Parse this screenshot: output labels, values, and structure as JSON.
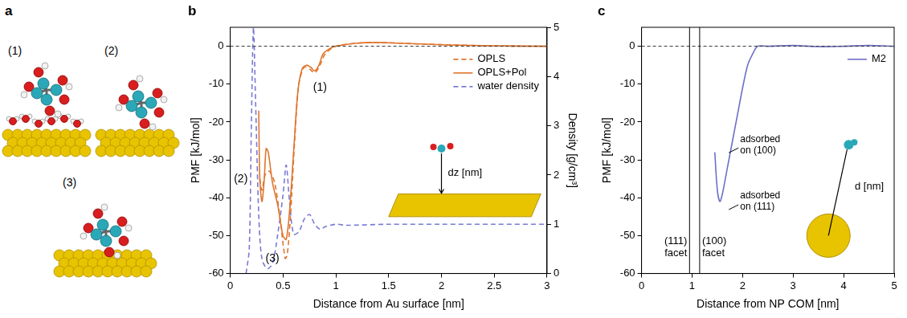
{
  "panel_a": {
    "panel": "a",
    "labels": [
      "(1)",
      "(2)",
      "(3)"
    ]
  },
  "chart_data": [
    {
      "panel": "b",
      "type": "line",
      "x_label": "Distance from Au surface [nm]",
      "y_label": "PMF [kJ/mol]",
      "y2_label": "Density [g/cm³]",
      "xlim": [
        0,
        3
      ],
      "xticks": [
        0,
        0.5,
        1,
        1.5,
        2,
        2.5,
        3
      ],
      "ylim": [
        -60,
        5
      ],
      "yticks": [
        -60,
        -50,
        -40,
        -30,
        -20,
        -10,
        0
      ],
      "y2lim": [
        0,
        5
      ],
      "y2ticks": [
        0,
        1,
        2,
        3,
        4,
        5
      ],
      "grid": false,
      "legend": "right",
      "hline": 0,
      "inset_label": "dz [nm]",
      "annotations": [
        {
          "text": "(1)",
          "x": 0.85,
          "y": -11
        },
        {
          "text": "(2)",
          "x": 0.1,
          "y": -35
        },
        {
          "text": "(3)",
          "x": 0.4,
          "y": -56
        }
      ],
      "series": [
        {
          "name": "OPLS",
          "color": "#e0752d",
          "line_style": "dashed",
          "x": [
            0.28,
            0.3,
            0.33,
            0.37,
            0.42,
            0.47,
            0.52,
            0.54,
            0.57,
            0.61,
            0.65,
            0.7,
            0.75,
            0.8,
            0.85,
            0.9,
            1.0,
            1.2,
            1.4,
            1.8,
            2.5,
            3.0
          ],
          "values": [
            -35,
            -38,
            -34,
            -33,
            -36,
            -45,
            -56,
            -55,
            -45,
            -25,
            -10,
            -5.5,
            -6,
            -7,
            -5,
            -2,
            0,
            0.8,
            1,
            0.6,
            0.1,
            0
          ]
        },
        {
          "name": "OPLS+Pol",
          "color": "#e0752d",
          "line_style": "solid",
          "x": [
            0.27,
            0.28,
            0.3,
            0.32,
            0.34,
            0.36,
            0.4,
            0.45,
            0.5,
            0.53,
            0.56,
            0.6,
            0.64,
            0.68,
            0.72,
            0.76,
            0.8,
            0.84,
            0.88,
            0.95,
            1.0,
            1.2,
            1.4,
            1.6,
            1.8,
            2.0,
            2.5,
            3.0
          ],
          "values": [
            -17,
            -35,
            -41,
            -36,
            -27,
            -28,
            -36,
            -42,
            -50,
            -51,
            -44,
            -28,
            -12,
            -6,
            -5,
            -5.5,
            -6.5,
            -5,
            -2,
            -0.5,
            0,
            0.8,
            1,
            0.8,
            0.6,
            0.4,
            0.1,
            0
          ]
        },
        {
          "name": "water density",
          "color": "#7a7ad6",
          "line_style": "dashed",
          "axis": "y2",
          "x": [
            0.15,
            0.18,
            0.2,
            0.22,
            0.24,
            0.27,
            0.3,
            0.35,
            0.4,
            0.45,
            0.5,
            0.53,
            0.56,
            0.6,
            0.65,
            0.7,
            0.75,
            0.8,
            0.85,
            0.9,
            1.0,
            1.1,
            1.5,
            2.0,
            2.5,
            3.0
          ],
          "values": [
            0,
            0.5,
            3,
            5,
            3.5,
            1.2,
            0.3,
            0.1,
            0.2,
            0.8,
            1.6,
            2.2,
            1.5,
            0.8,
            0.85,
            1.1,
            1.2,
            1.0,
            0.9,
            0.95,
            1.0,
            0.98,
            1.0,
            1.0,
            1.0,
            1.0
          ]
        }
      ]
    },
    {
      "panel": "c",
      "type": "line",
      "x_label": "Distance from NP COM [nm]",
      "y_label": "PMF [kJ/mol]",
      "xlim": [
        0,
        5
      ],
      "xticks": [
        0,
        1,
        2,
        3,
        4,
        5
      ],
      "ylim": [
        -60,
        5
      ],
      "yticks": [
        -60,
        -50,
        -40,
        -30,
        -20,
        -10,
        0
      ],
      "grid": false,
      "legend": "right",
      "hline": 0,
      "inset_label": "d [nm]",
      "facets": [
        {
          "x": 0.95,
          "label": "(111) facet"
        },
        {
          "x": 1.15,
          "label": "(100) facet"
        }
      ],
      "annotations": [
        {
          "text": "adsorbed on (100)",
          "x": 1.95,
          "y": -26
        },
        {
          "text": "adsorbed on (111)",
          "x": 1.95,
          "y": -41
        }
      ],
      "series": [
        {
          "name": "M2",
          "color": "#6f6fc8",
          "line_style": "solid",
          "x": [
            1.45,
            1.5,
            1.55,
            1.6,
            1.7,
            1.8,
            1.9,
            2.0,
            2.1,
            2.2,
            2.3,
            2.5,
            3.0,
            3.5,
            4.0,
            4.5,
            5.0
          ],
          "values": [
            -28,
            -38,
            -41,
            -39,
            -32,
            -25,
            -18,
            -11,
            -5,
            -2,
            0,
            0,
            0.2,
            -0.1,
            0,
            0.2,
            0
          ]
        }
      ]
    }
  ]
}
